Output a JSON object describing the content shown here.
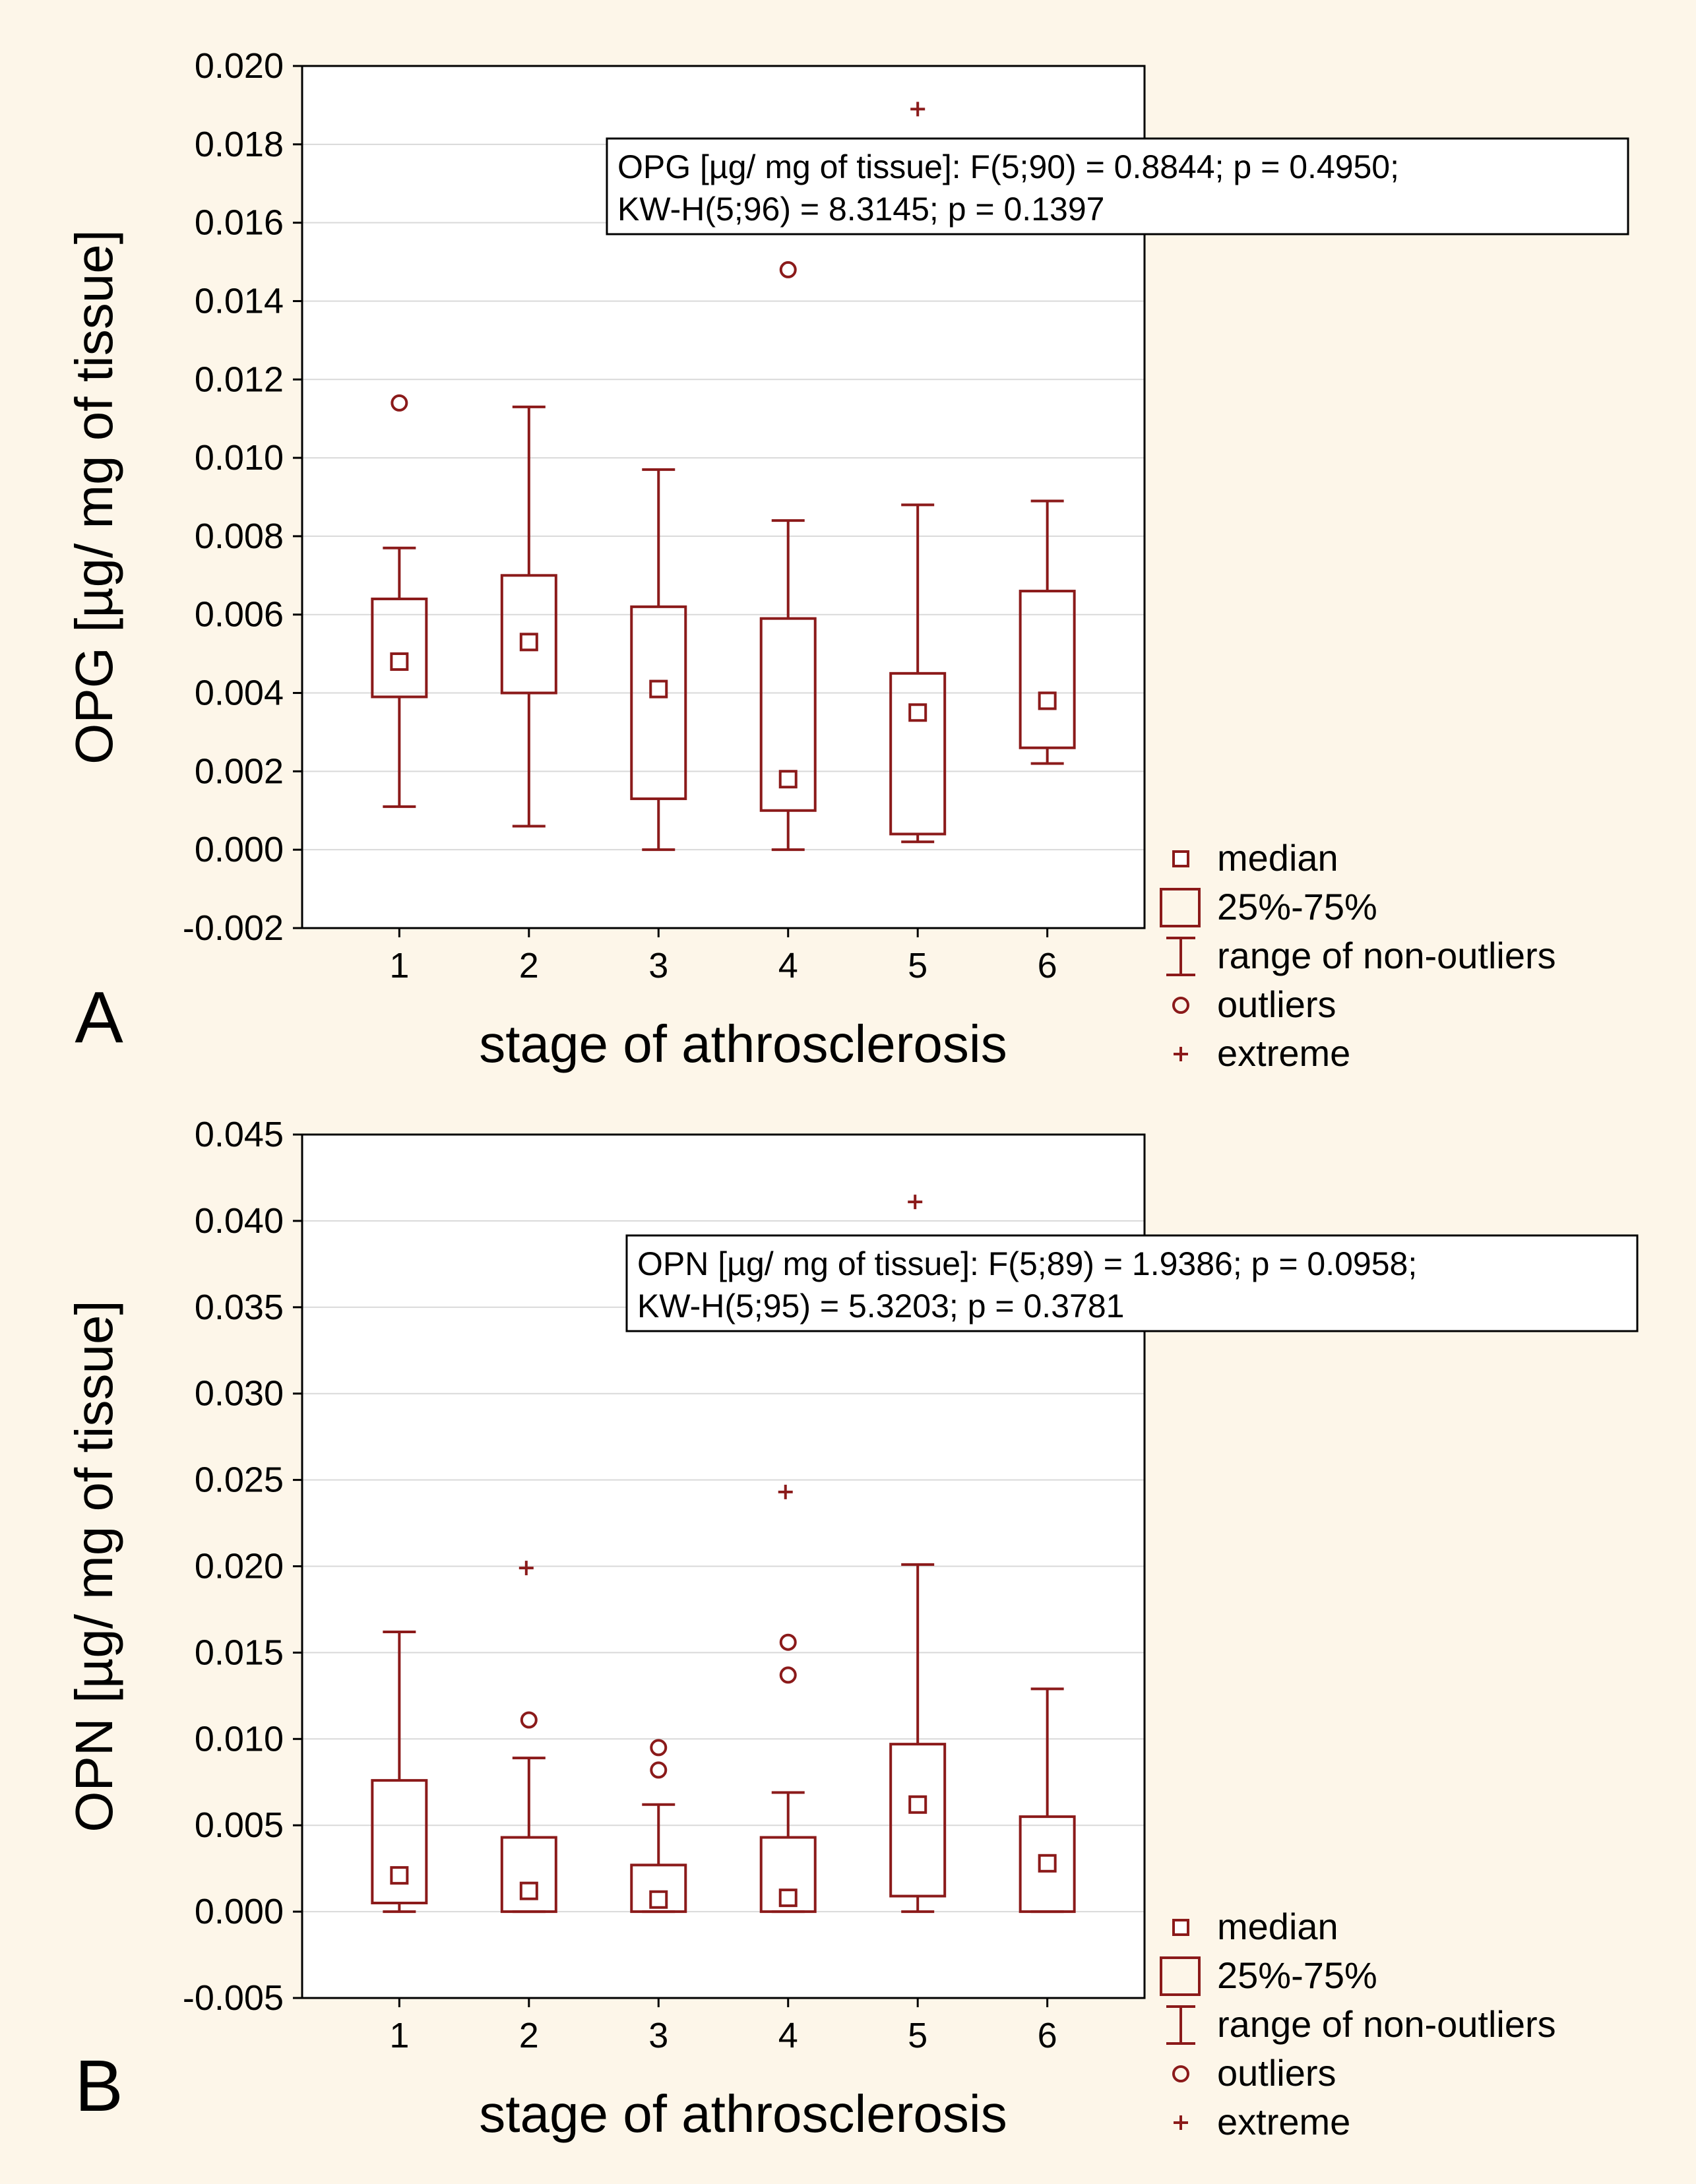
{
  "background": "#fdf6e9",
  "accent": "#8b1a1a",
  "chart_data": [
    {
      "panel": "A",
      "type": "boxplot",
      "title": "",
      "xlabel": "stage of athrosclerosis",
      "ylabel": "OPG [µg/ mg of tissue]",
      "ylim": [
        -0.002,
        0.02
      ],
      "yticks": [
        0.02,
        0.018,
        0.016,
        0.014,
        0.012,
        0.01,
        0.008,
        0.006,
        0.004,
        0.002,
        0.0,
        -0.002
      ],
      "ytick_labels": [
        "0.020",
        "0.018",
        "0.016",
        "0.014",
        "0.012",
        "0.010",
        "0.008",
        "0.006",
        "0.004",
        "0.002",
        "0.000",
        "-0.002"
      ],
      "categories": [
        "1",
        "2",
        "3",
        "4",
        "5",
        "6"
      ],
      "grid": true,
      "stats_lines": [
        "OPG [µg/ mg of tissue]:   F(5;90) = 0.8844; p = 0.4950;",
        "KW-H(5;96) = 8.3145; p = 0.1397"
      ],
      "boxes": [
        {
          "stage": "1",
          "median": 0.0048,
          "q1": 0.0039,
          "q3": 0.0064,
          "min": 0.0011,
          "max": 0.0077,
          "outliers": [
            0.0114
          ],
          "extremes": []
        },
        {
          "stage": "2",
          "median": 0.0053,
          "q1": 0.004,
          "q3": 0.007,
          "min": 0.0006,
          "max": 0.0113,
          "outliers": [],
          "extremes": []
        },
        {
          "stage": "3",
          "median": 0.0041,
          "q1": 0.0013,
          "q3": 0.0062,
          "min": 0.0,
          "max": 0.0097,
          "outliers": [],
          "extremes": []
        },
        {
          "stage": "4",
          "median": 0.0018,
          "q1": 0.001,
          "q3": 0.0059,
          "min": 0.0,
          "max": 0.0084,
          "outliers": [
            0.0148
          ],
          "extremes": []
        },
        {
          "stage": "5",
          "median": 0.0035,
          "q1": 0.0004,
          "q3": 0.0045,
          "min": 0.0002,
          "max": 0.0088,
          "outliers": [],
          "extremes": [
            0.0189
          ]
        },
        {
          "stage": "6",
          "median": 0.0038,
          "q1": 0.0026,
          "q3": 0.0066,
          "min": 0.0022,
          "max": 0.0089,
          "outliers": [],
          "extremes": []
        }
      ],
      "legend": [
        "median",
        "25%-75%",
        "range of non-outliers",
        "outliers",
        "extreme"
      ],
      "legend_position": "bottom-right, outside plot"
    },
    {
      "panel": "B",
      "type": "boxplot",
      "title": "",
      "xlabel": "stage of athrosclerosis",
      "ylabel": "OPN [µg/ mg of tissue]",
      "ylim": [
        -0.005,
        0.045
      ],
      "yticks": [
        0.045,
        0.04,
        0.035,
        0.03,
        0.025,
        0.02,
        0.015,
        0.01,
        0.005,
        0.0,
        -0.005
      ],
      "ytick_labels": [
        "0.045",
        "0.040",
        "0.035",
        "0.030",
        "0.025",
        "0.020",
        "0.015",
        "0.010",
        "0.005",
        "0.000",
        "-0.005"
      ],
      "categories": [
        "1",
        "2",
        "3",
        "4",
        "5",
        "6"
      ],
      "grid": true,
      "stats_lines": [
        "OPN [µg/ mg of tissue]:   F(5;89) = 1.9386; p = 0.0958;",
        "KW-H(5;95) = 5.3203; p = 0.3781"
      ],
      "boxes": [
        {
          "stage": "1",
          "median": 0.0021,
          "q1": 0.0005,
          "q3": 0.0076,
          "min": 0.0,
          "max": 0.0162,
          "outliers": [],
          "extremes": []
        },
        {
          "stage": "2",
          "median": 0.0012,
          "q1": 0.0,
          "q3": 0.0043,
          "min": 0.0,
          "max": 0.0089,
          "outliers": [
            0.0111
          ],
          "extremes": [
            0.0199
          ]
        },
        {
          "stage": "3",
          "median": 0.0007,
          "q1": 0.0,
          "q3": 0.0027,
          "min": 0.0,
          "max": 0.0062,
          "outliers": [
            0.0095,
            0.0082
          ],
          "extremes": []
        },
        {
          "stage": "4",
          "median": 0.0008,
          "q1": 0.0,
          "q3": 0.0043,
          "min": 0.0,
          "max": 0.0069,
          "outliers": [
            0.0156,
            0.0137
          ],
          "extremes": [
            0.0243
          ]
        },
        {
          "stage": "5",
          "median": 0.0062,
          "q1": 0.0009,
          "q3": 0.0097,
          "min": 0.0,
          "max": 0.0201,
          "outliers": [],
          "extremes": [
            0.0411
          ]
        },
        {
          "stage": "6",
          "median": 0.0028,
          "q1": 0.0,
          "q3": 0.0055,
          "min": 0.0,
          "max": 0.0129,
          "outliers": [],
          "extremes": []
        }
      ],
      "legend": [
        "median",
        "25%-75%",
        "range of non-outliers",
        "outliers",
        "extreme"
      ],
      "legend_position": "bottom-right, outside plot"
    }
  ]
}
